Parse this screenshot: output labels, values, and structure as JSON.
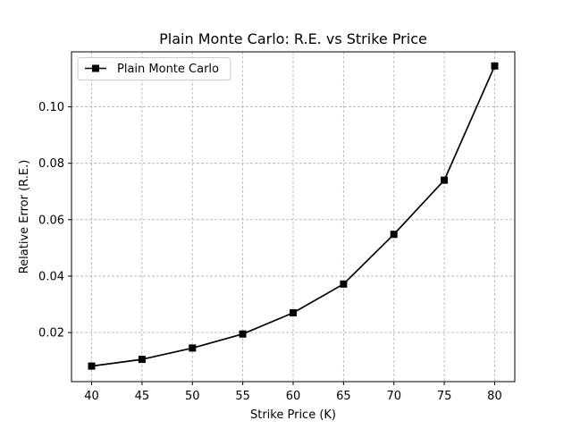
{
  "chart_data": {
    "type": "line",
    "title": "Plain Monte Carlo: R.E. vs Strike Price",
    "xlabel": "Strike Price (K)",
    "ylabel": "Relative Error (R.E.)",
    "x": [
      40,
      45,
      50,
      55,
      60,
      65,
      70,
      75,
      80
    ],
    "xlim": [
      38.0,
      82.0
    ],
    "ylim": [
      0.0026,
      0.1195
    ],
    "xticks": [
      40,
      45,
      50,
      55,
      60,
      65,
      70,
      75,
      80
    ],
    "yticks": [
      0.02,
      0.04,
      0.06,
      0.08,
      0.1
    ],
    "ytick_labels": [
      "0.02",
      "0.04",
      "0.06",
      "0.08",
      "0.10"
    ],
    "grid": true,
    "legend_position": "top-left",
    "series": [
      {
        "name": "Plain Monte Carlo",
        "color": "#000000",
        "marker": "square",
        "values": [
          0.0081,
          0.0105,
          0.0145,
          0.0195,
          0.027,
          0.0372,
          0.0548,
          0.074,
          0.1145
        ]
      }
    ]
  }
}
